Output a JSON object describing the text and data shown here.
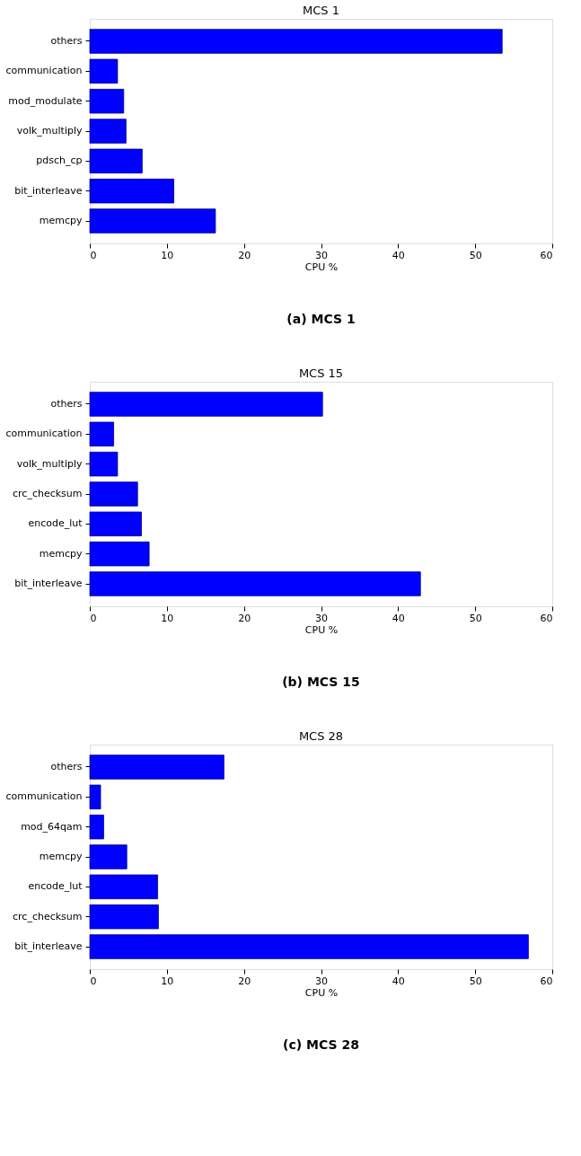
{
  "chart_data": [
    {
      "type": "bar",
      "orientation": "horizontal",
      "title": "MCS 1",
      "xlabel": "CPU %",
      "categories": [
        "others",
        "communication",
        "mod_modulate",
        "volk_multiply",
        "pdsch_cp",
        "bit_interleave",
        "memcpy"
      ],
      "values": [
        53.5,
        3.6,
        4.4,
        4.7,
        6.8,
        10.9,
        16.3
      ],
      "color": "#0000ff",
      "xlim": [
        0,
        60
      ],
      "xticks": [
        0,
        10,
        20,
        30,
        40,
        50,
        60
      ],
      "grid": false,
      "annotations": [
        "(a) MCS 1"
      ]
    },
    {
      "type": "bar",
      "orientation": "horizontal",
      "title": "MCS 15",
      "xlabel": "CPU %",
      "categories": [
        "others",
        "communication",
        "volk_multiply",
        "crc_checksum",
        "encode_lut",
        "memcpy",
        "bit_interleave"
      ],
      "values": [
        30.2,
        3.1,
        3.6,
        6.2,
        6.7,
        7.7,
        42.9
      ],
      "color": "#0000ff",
      "xlim": [
        0,
        60
      ],
      "xticks": [
        0,
        10,
        20,
        30,
        40,
        50,
        60
      ],
      "grid": false,
      "annotations": [
        "(b) MCS 15"
      ]
    },
    {
      "type": "bar",
      "orientation": "horizontal",
      "title": "MCS 28",
      "xlabel": "CPU %",
      "categories": [
        "others",
        "communication",
        "mod_64qam",
        "memcpy",
        "encode_lut",
        "crc_checksum",
        "bit_interleave"
      ],
      "values": [
        17.4,
        1.4,
        1.8,
        4.8,
        8.8,
        8.9,
        56.9
      ],
      "color": "#0000ff",
      "xlim": [
        0,
        60
      ],
      "xticks": [
        0,
        10,
        20,
        30,
        40,
        50,
        60
      ],
      "grid": false,
      "annotations": [
        "(c) MCS 28"
      ]
    }
  ]
}
